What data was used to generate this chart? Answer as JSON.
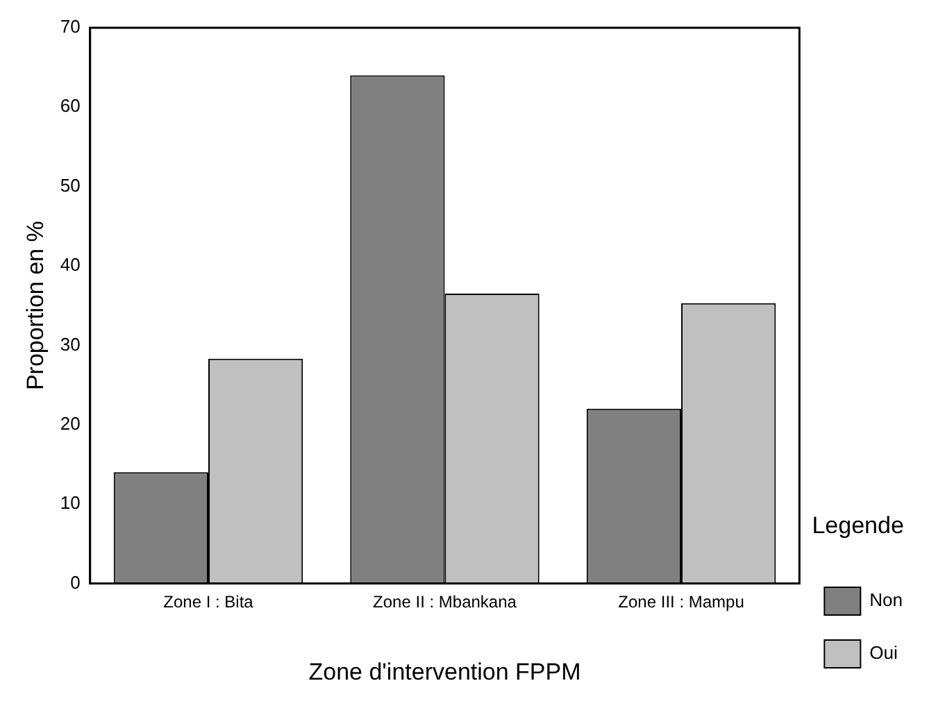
{
  "chart_data": {
    "type": "bar",
    "categories": [
      "Zone I : Bita",
      "Zone II : Mbankana",
      "Zone III : Mampu"
    ],
    "series": [
      {
        "name": "Non",
        "color": "#808080",
        "values": [
          14.0,
          64.0,
          22.0
        ]
      },
      {
        "name": "Oui",
        "color": "#c0c0c0",
        "values": [
          28.3,
          36.5,
          35.3
        ]
      }
    ],
    "xlabel": "Zone d'intervention FPPM",
    "ylabel": "Proportion en %",
    "legend_title": "Legende",
    "legend": "bottom right",
    "ylim": [
      0,
      70
    ],
    "yticks": [
      0,
      10,
      20,
      30,
      40,
      50,
      60,
      70
    ],
    "grid": false
  }
}
